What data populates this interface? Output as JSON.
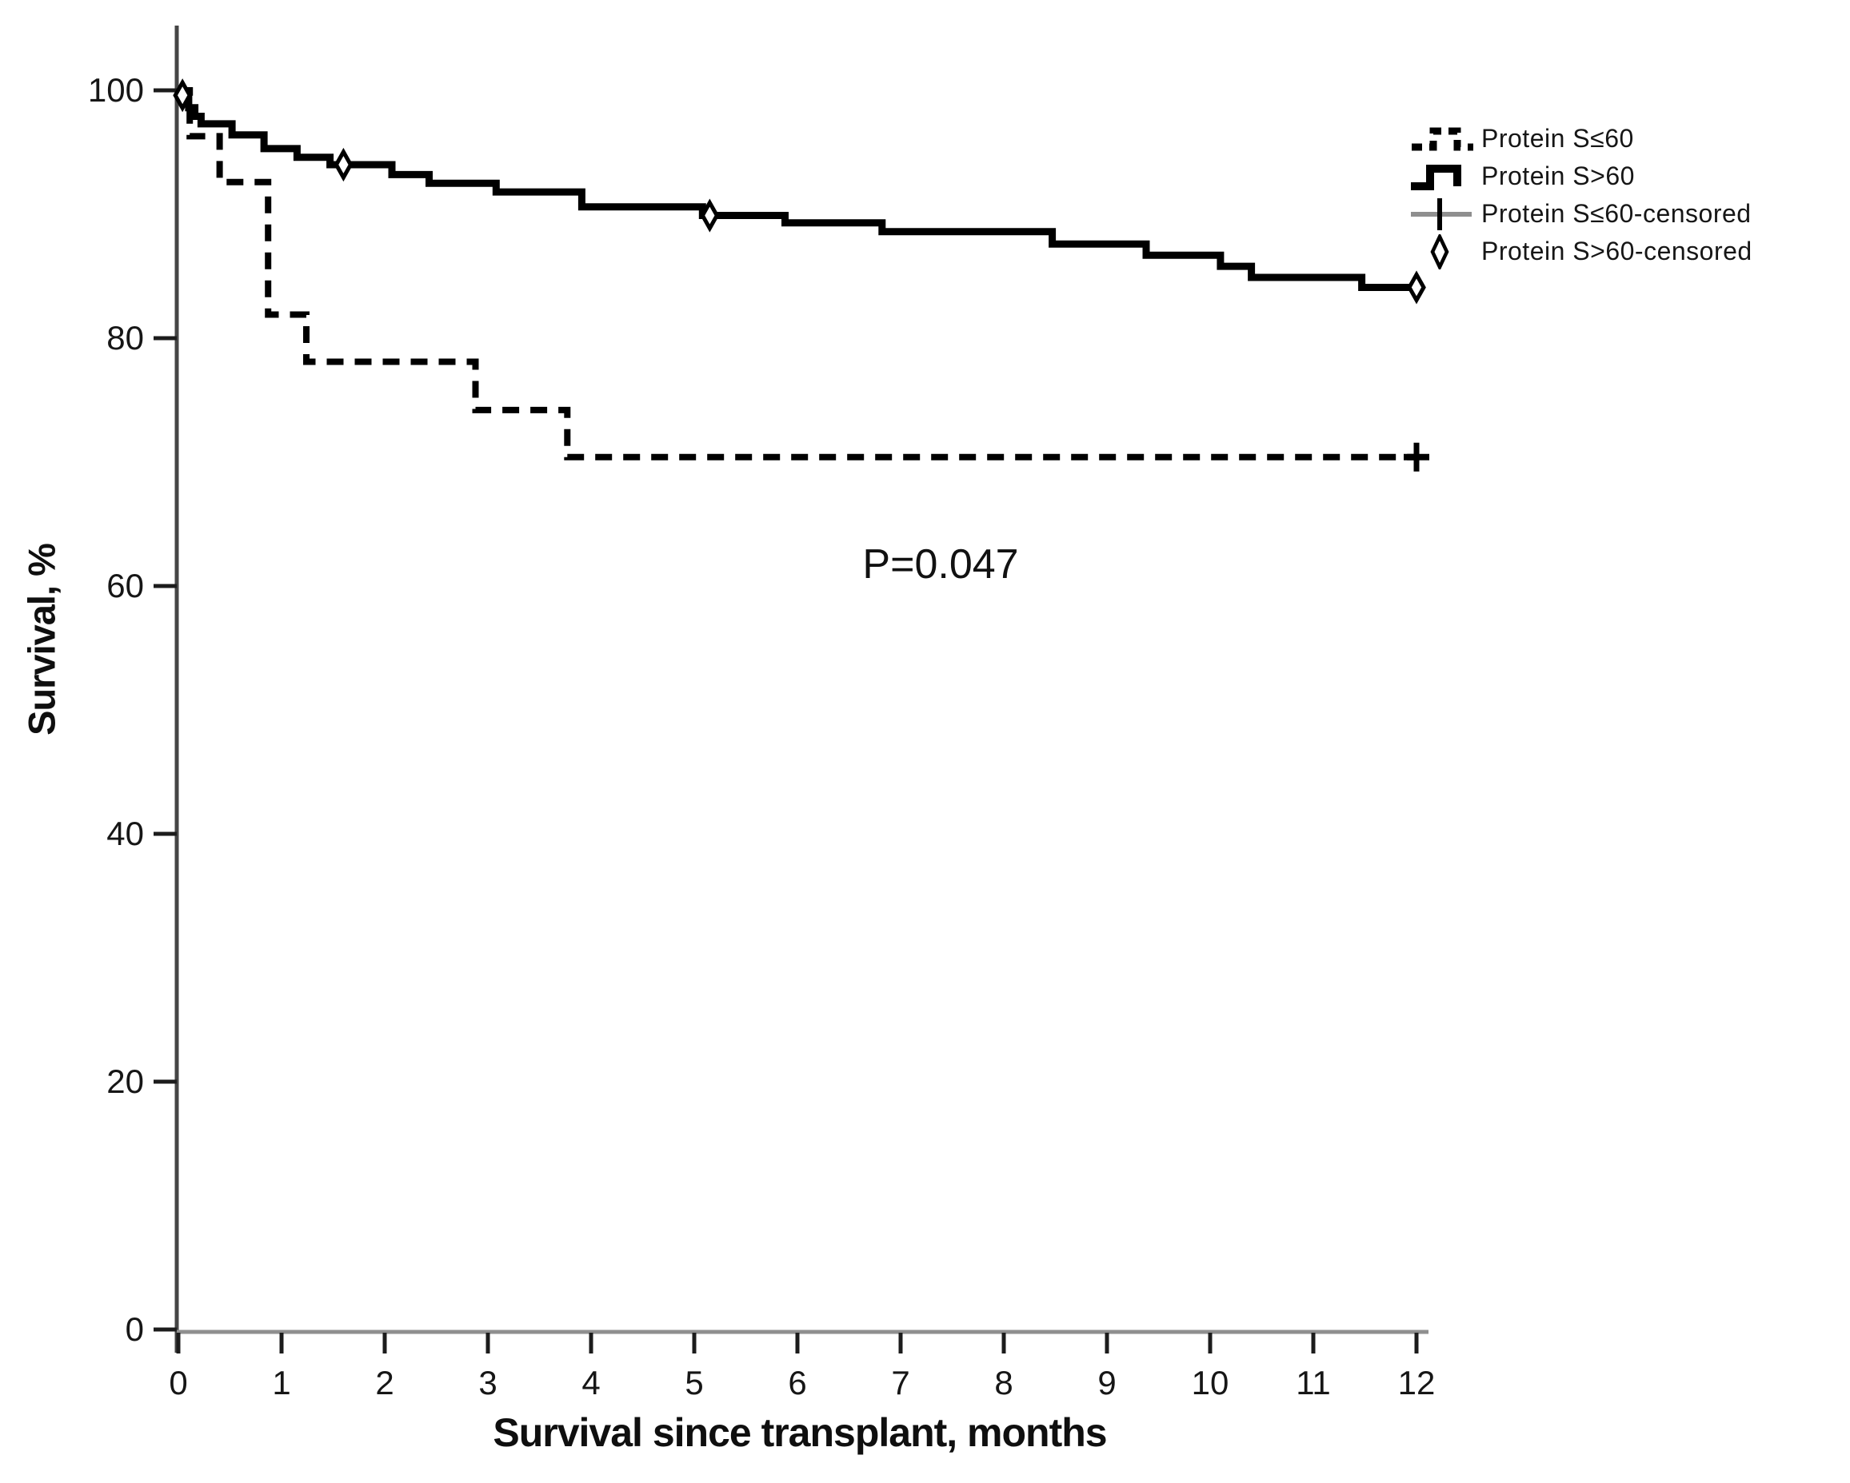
{
  "figure": {
    "y_axis_title": "Survival, %",
    "x_axis_title": "Survival since transplant, months",
    "p_value_label": "P=0.047",
    "background_color": "#ffffff",
    "curve_color": "#000000",
    "axis_color": "#454545",
    "x_axis_line_color": "#8f8f8f",
    "tick_label_color": "#161616"
  },
  "legend": {
    "items": [
      {
        "label": "Protein S≤60",
        "sample": "dashed-step-line"
      },
      {
        "label": "Protein S>60",
        "sample": "solid-step-line"
      },
      {
        "label": "Protein S≤60-censored",
        "sample": "plus-marker"
      },
      {
        "label": "Protein S>60-censored",
        "sample": "diamond-marker"
      }
    ]
  },
  "chart_data": {
    "type": "line",
    "subtype": "kaplan-meier-step",
    "title": "",
    "xlabel": "Survival since transplant, months",
    "ylabel": "Survival, %",
    "xlim": [
      0,
      12
    ],
    "ylim": [
      0,
      100
    ],
    "x_ticks": [
      0,
      1,
      2,
      3,
      4,
      5,
      6,
      7,
      8,
      9,
      10,
      11,
      12
    ],
    "y_ticks": [
      0,
      20,
      40,
      60,
      80,
      100
    ],
    "grid": false,
    "legend_position": "upper-right",
    "annotation": {
      "text": "P=0.047",
      "x": 7.4,
      "y": 61.7
    },
    "series": [
      {
        "name": "Protein S≤60",
        "style": "dashed",
        "color": "#000000",
        "points": [
          [
            0,
            100
          ],
          [
            0.11,
            96.3
          ],
          [
            0.4,
            92.6
          ],
          [
            0.87,
            81.9
          ],
          [
            1.24,
            78.1
          ],
          [
            2.88,
            74.2
          ],
          [
            3.77,
            70.4
          ],
          [
            12,
            70.4
          ]
        ],
        "censored": [
          {
            "x": 12,
            "y": 70.4,
            "marker": "plus"
          }
        ]
      },
      {
        "name": "Protein S>60",
        "style": "solid",
        "color": "#000000",
        "points": [
          [
            0,
            100
          ],
          [
            0.05,
            99.3
          ],
          [
            0.1,
            98.6
          ],
          [
            0.16,
            97.9
          ],
          [
            0.22,
            97.3
          ],
          [
            0.52,
            96.4
          ],
          [
            0.83,
            95.3
          ],
          [
            1.15,
            94.6
          ],
          [
            1.47,
            94.0
          ],
          [
            2.07,
            93.2
          ],
          [
            2.43,
            92.5
          ],
          [
            3.08,
            91.8
          ],
          [
            3.91,
            90.6
          ],
          [
            5.08,
            89.9
          ],
          [
            5.88,
            89.3
          ],
          [
            6.82,
            88.6
          ],
          [
            8.47,
            87.6
          ],
          [
            9.38,
            86.7
          ],
          [
            10.1,
            85.8
          ],
          [
            10.4,
            84.9
          ],
          [
            11.47,
            84.1
          ],
          [
            12,
            84.1
          ]
        ],
        "censored": [
          {
            "x": 0.04,
            "y": 99.6,
            "marker": "diamond"
          },
          {
            "x": 1.6,
            "y": 94.0,
            "marker": "diamond"
          },
          {
            "x": 5.15,
            "y": 89.9,
            "marker": "diamond"
          },
          {
            "x": 12,
            "y": 84.1,
            "marker": "diamond"
          }
        ]
      }
    ]
  }
}
